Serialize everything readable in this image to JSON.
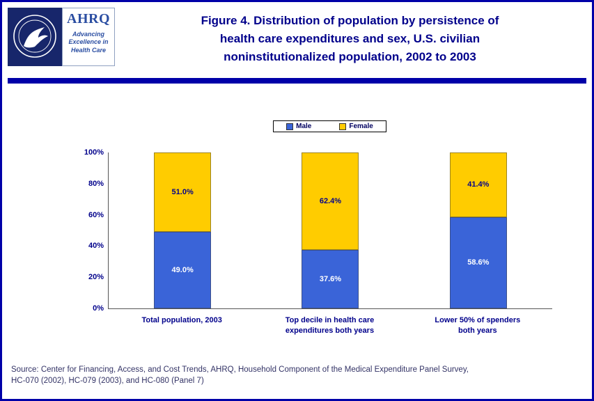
{
  "header": {
    "title_lines": [
      "Figure 4. Distribution of population by persistence of",
      "health care expenditures and sex, U.S. civilian",
      "noninstitutionalized population, 2002 to 2003"
    ],
    "title_color": "#00008B",
    "logo": {
      "wordmark": "AHRQ",
      "tagline_lines": [
        "Advancing",
        "Excellence in",
        "Health Care"
      ],
      "hhs_color": "#17266B",
      "ahrq_color": "#2B4EA2"
    }
  },
  "chart_data": {
    "type": "bar",
    "stacked": true,
    "title": "Figure 4. Distribution of population by persistence of health care expenditures and sex, U.S. civilian noninstitutionalized population, 2002 to 2003",
    "categories": [
      "Total population, 2003",
      "Top decile in health care expenditures both years",
      "Lower 50% of spenders both years"
    ],
    "category_label_lines": [
      [
        "Total population, 2003"
      ],
      [
        "Top decile in health care",
        "expenditures both years"
      ],
      [
        "Lower 50% of spenders",
        "both years"
      ]
    ],
    "series": [
      {
        "name": "Male",
        "color": "#3A64D8",
        "label_color": "#FFFFFF",
        "values": [
          49.0,
          37.6,
          58.6
        ],
        "labels": [
          "49.0%",
          "37.6%",
          "58.6%"
        ]
      },
      {
        "name": "Female",
        "color": "#FFCC00",
        "label_color": "#00008B",
        "values": [
          51.0,
          62.4,
          41.4
        ],
        "labels": [
          "51.0%",
          "62.4%",
          "41.4%"
        ]
      }
    ],
    "y_ticks": [
      0,
      20,
      40,
      60,
      80,
      100
    ],
    "y_tick_labels": [
      "0%",
      "20%",
      "40%",
      "60%",
      "80%",
      "100%"
    ],
    "ylim": [
      0,
      100
    ],
    "grid": false,
    "legend_position": "top"
  },
  "footer": {
    "source_lines": [
      "Source: Center for Financing, Access, and Cost Trends, AHRQ, Household Component of the Medical Expenditure Panel Survey,",
      "HC-070 (2002), HC-079 (2003), and HC-080 (Panel 7)"
    ]
  }
}
